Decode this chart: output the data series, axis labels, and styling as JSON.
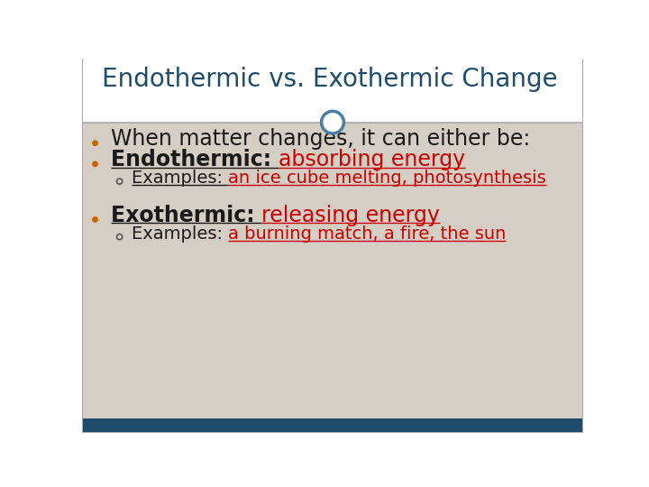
{
  "title": "Endothermic vs. Exothermic Change",
  "title_color": "#1e4d6b",
  "bg_color": "#ffffff",
  "content_bg_color": "#d5cec4",
  "header_bg_color": "#ffffff",
  "footer_bg_color": "#1e4d6b",
  "border_color": "#aaaaaa",
  "bullet_color": "#cc6600",
  "dark_text_color": "#1a1a1a",
  "red_text_color": "#cc0000",
  "circle_stroke_color": "#4a7fa5",
  "lines": [
    {
      "type": "bullet",
      "parts": [
        {
          "text": "When matter changes, it can either be:",
          "color": "#1a1a1a",
          "bold": false,
          "underline": false
        }
      ]
    },
    {
      "type": "bullet",
      "parts": [
        {
          "text": "Endothermic: ",
          "color": "#1a1a1a",
          "bold": true,
          "underline": true
        },
        {
          "text": "absorbing energy",
          "color": "#cc0000",
          "bold": false,
          "underline": true
        }
      ]
    },
    {
      "type": "sub_bullet",
      "parts": [
        {
          "text": "Examples: ",
          "color": "#1a1a1a",
          "bold": false,
          "underline": true
        },
        {
          "text": "an ice cube melting, photosynthesis",
          "color": "#cc0000",
          "bold": false,
          "underline": true
        }
      ]
    },
    {
      "type": "spacer",
      "parts": []
    },
    {
      "type": "bullet",
      "parts": [
        {
          "text": "Exothermic: ",
          "color": "#1a1a1a",
          "bold": true,
          "underline": true
        },
        {
          "text": "releasing energy",
          "color": "#cc0000",
          "bold": false,
          "underline": true
        }
      ]
    },
    {
      "type": "sub_bullet",
      "parts": [
        {
          "text": "Examples: ",
          "color": "#1a1a1a",
          "bold": false,
          "underline": false
        },
        {
          "text": "a burning match, a fire, the sun",
          "color": "#cc0000",
          "bold": false,
          "underline": true
        }
      ]
    }
  ],
  "y_positions": [
    415,
    385,
    360,
    null,
    305,
    280
  ],
  "title_fontsize": 20,
  "bullet_fontsize": 17,
  "sub_fontsize": 14
}
